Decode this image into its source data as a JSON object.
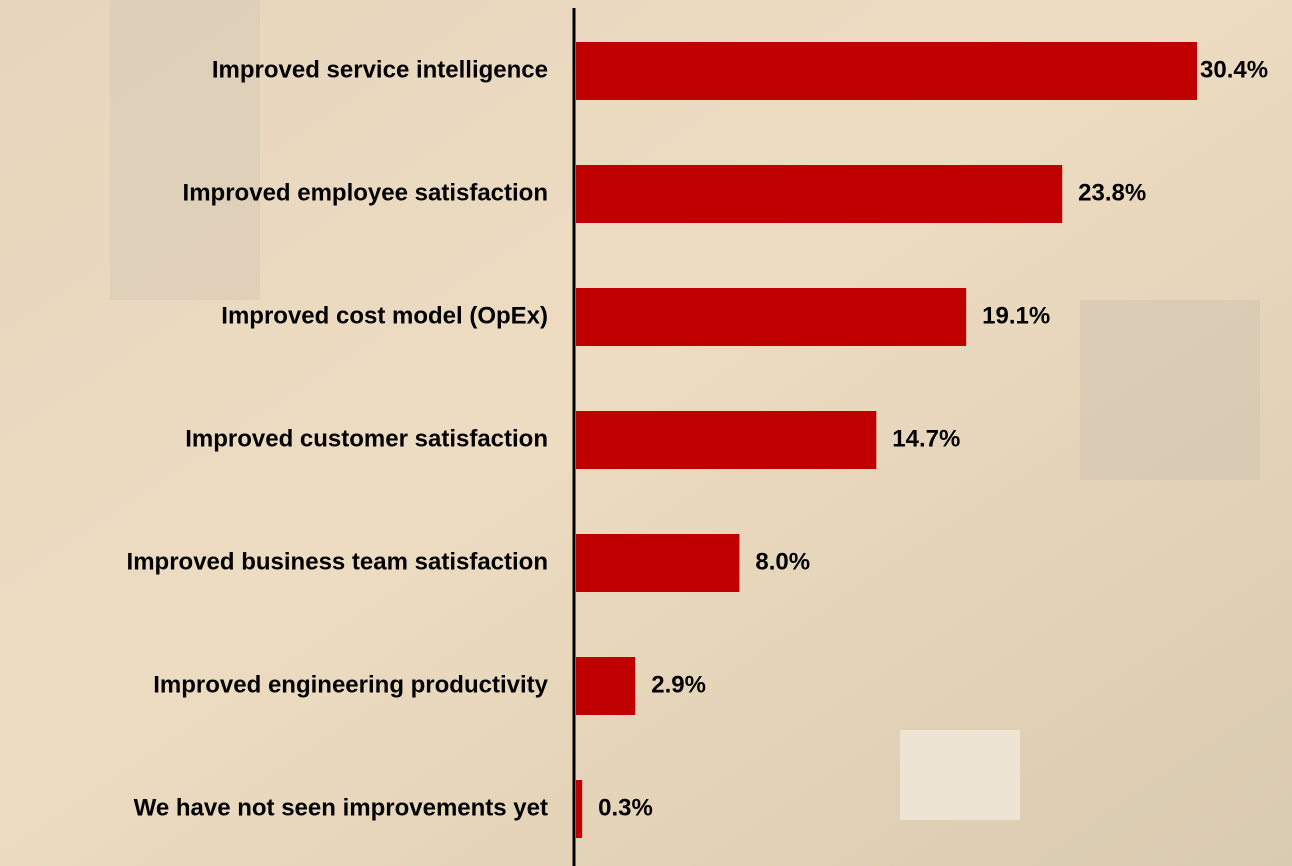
{
  "chart_data": {
    "type": "hbar",
    "categories": [
      "Improved service intelligence",
      "Improved employee satisfaction",
      "Improved cost model (OpEx)",
      "Improved customer satisfaction",
      "Improved business team satisfaction",
      "Improved engineering productivity",
      "We have not seen improvements yet"
    ],
    "values": [
      30.4,
      23.8,
      19.1,
      14.7,
      8.0,
      2.9,
      0.3
    ],
    "value_labels": [
      "30.4%",
      "23.8%",
      "19.1%",
      "14.7%",
      "8.0%",
      "2.9%",
      "0.3%"
    ],
    "color": "#c00000"
  }
}
